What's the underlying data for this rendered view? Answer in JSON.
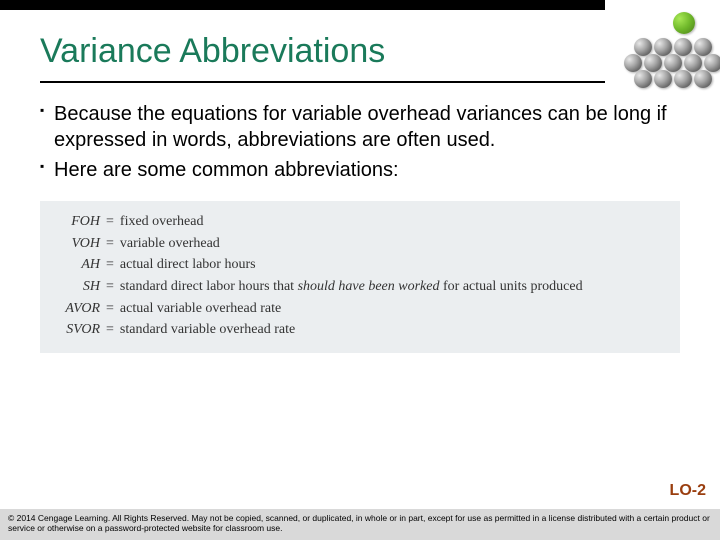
{
  "title": "Variance Abbreviations",
  "bullets": [
    "Because the equations for variable overhead variances can be long if expressed in words, abbreviations are often used.",
    "Here are some common abbreviations:"
  ],
  "abbreviations": [
    {
      "key": "FOH",
      "value": "fixed overhead"
    },
    {
      "key": "VOH",
      "value": "variable overhead"
    },
    {
      "key": "AH",
      "value": "actual direct labor hours"
    },
    {
      "key": "SH",
      "value_html": "standard direct labor hours that <em>should have been worked</em> for actual units produced"
    },
    {
      "key": "AVOR",
      "value": "actual variable overhead rate"
    },
    {
      "key": "SVOR",
      "value": "standard variable overhead rate"
    }
  ],
  "lo_tag": "LO-2",
  "footer": "© 2014 Cengage Learning. All Rights Reserved. May not be copied, scanned, or duplicated, in whole or in part, except for use as permitted in a license distributed with a certain product or service or otherwise on a password-protected website for classroom use.",
  "colors": {
    "title": "#1a7a5a",
    "lo": "#9a3e0f",
    "box_bg": "#ebeef0",
    "footer_bg": "#d9d9d9"
  }
}
